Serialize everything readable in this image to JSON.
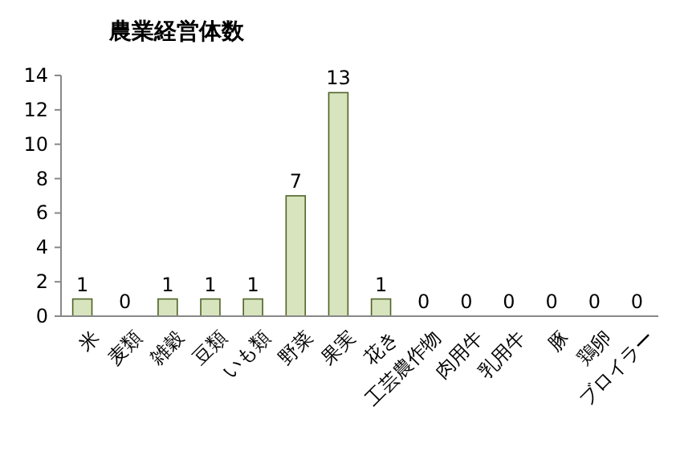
{
  "chart_data": {
    "type": "bar",
    "title": "農業経営体数",
    "categories": [
      "米",
      "麦類",
      "雑穀",
      "豆類",
      "いも類",
      "野菜",
      "果実",
      "花き",
      "工芸農作物",
      "肉用牛",
      "乳用牛",
      "豚",
      "鶏卵",
      "ブロイラー"
    ],
    "values": [
      1,
      0,
      1,
      1,
      1,
      7,
      13,
      1,
      0,
      0,
      0,
      0,
      0,
      0
    ],
    "color": "#d7e4bd",
    "ylim": [
      0,
      14
    ],
    "yticks": [
      0,
      2,
      4,
      6,
      8,
      10,
      12,
      14
    ],
    "data_labels": true
  }
}
